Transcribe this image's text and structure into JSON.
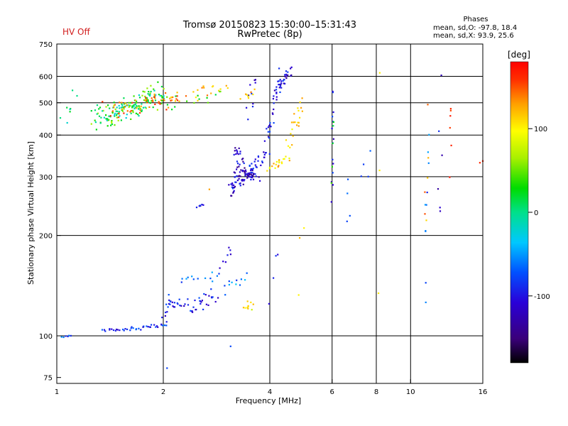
{
  "header": {
    "hv_status": "HV Off",
    "title_line1": "Tromsø 20150823 15:30:00–15:31:43",
    "title_line2": "RwPretec (8p)"
  },
  "phases_box": {
    "title": "Phases",
    "line1": "mean, sd,O: -97.8, 18.4",
    "line2": "mean, sd,X:  93.9, 25.6"
  },
  "colors": {
    "hv_off": "#d21e1e",
    "colormap": [
      "#000000",
      "#3a007a",
      "#2a00d8",
      "#0050ff",
      "#00c8ff",
      "#00e08a",
      "#00dc00",
      "#a8f000",
      "#ffff00",
      "#ffa000",
      "#ff3000",
      "#ff0000"
    ]
  },
  "chart_data": {
    "type": "scatter",
    "xlabel": "Frequency [MHz]",
    "ylabel": "Stationary phase Virtual Height [km]",
    "x_scale": "log",
    "y_scale": "log",
    "xlim": [
      1,
      16
    ],
    "ylim": [
      72,
      750
    ],
    "x_ticks": [
      1,
      2,
      4,
      6,
      8,
      10,
      16
    ],
    "y_ticks": [
      75,
      100,
      200,
      300,
      400,
      500,
      600,
      750
    ],
    "v_gridlines": [
      2,
      4,
      6,
      8,
      10
    ],
    "h_gridlines": [
      100,
      200,
      300,
      400,
      500,
      600
    ],
    "colorbar": {
      "label": "[deg]",
      "range": [
        -180,
        180
      ],
      "ticks": [
        100,
        0,
        -100
      ]
    },
    "series": [
      {
        "segments": [
          {
            "f0": 1.03,
            "f1": 1.1,
            "h0": 99,
            "h1": 100,
            "n": 6,
            "phase": -90,
            "jit": 0.005
          },
          {
            "f0": 1.35,
            "f1": 1.75,
            "h0": 103,
            "h1": 106,
            "n": 24,
            "phase": -95,
            "jit": 0.01
          },
          {
            "f0": 1.75,
            "f1": 2.05,
            "h0": 106,
            "h1": 108,
            "n": 16,
            "phase": -100,
            "jit": 0.01
          },
          {
            "f0": 2.0,
            "f1": 2.1,
            "h0": 108,
            "h1": 135,
            "n": 10,
            "phase": -105,
            "jit": 0.02
          },
          {
            "f0": 2.05,
            "f1": 2.45,
            "h0": 130,
            "h1": 118,
            "n": 22,
            "phase": -105,
            "jit": 0.03
          },
          {
            "f0": 2.4,
            "f1": 2.9,
            "h0": 118,
            "h1": 140,
            "n": 22,
            "phase": -100,
            "jit": 0.04
          },
          {
            "f0": 2.2,
            "f1": 2.8,
            "h0": 150,
            "h1": 150,
            "n": 12,
            "phase": -80,
            "jit": 0.04
          },
          {
            "f0": 2.9,
            "f1": 3.1,
            "h0": 155,
            "h1": 190,
            "n": 8,
            "phase": -110,
            "jit": 0.02
          },
          {
            "f0": 3.0,
            "f1": 3.5,
            "h0": 140,
            "h1": 150,
            "n": 10,
            "phase": -70,
            "jit": 0.04
          },
          {
            "f0": 3.1,
            "f1": 3.2,
            "h0": 260,
            "h1": 300,
            "n": 8,
            "phase": -130,
            "jit": 0.01
          },
          {
            "f0": 3.1,
            "f1": 3.6,
            "h0": 270,
            "h1": 320,
            "n": 45,
            "phase": -115,
            "jit": 0.03
          },
          {
            "f0": 3.2,
            "f1": 3.7,
            "h0": 330,
            "h1": 290,
            "n": 30,
            "phase": -120,
            "jit": 0.02
          },
          {
            "f0": 3.2,
            "f1": 3.35,
            "h0": 380,
            "h1": 320,
            "n": 16,
            "phase": -115,
            "jit": 0.02
          },
          {
            "f0": 3.5,
            "f1": 3.95,
            "h0": 310,
            "h1": 360,
            "n": 24,
            "phase": -110,
            "jit": 0.02
          },
          {
            "f0": 3.9,
            "f1": 4.1,
            "h0": 380,
            "h1": 470,
            "n": 14,
            "phase": -105,
            "jit": 0.015
          },
          {
            "f0": 4.1,
            "f1": 4.3,
            "h0": 470,
            "h1": 640,
            "n": 22,
            "phase": -108,
            "jit": 0.015
          },
          {
            "f0": 4.3,
            "f1": 4.55,
            "h0": 560,
            "h1": 640,
            "n": 20,
            "phase": -110,
            "jit": 0.02
          },
          {
            "f0": 3.5,
            "f1": 3.65,
            "h0": 440,
            "h1": 650,
            "n": 10,
            "phase": -112,
            "jit": 0.02
          },
          {
            "f0": 3.95,
            "f1": 4.5,
            "h0": 310,
            "h1": 350,
            "n": 20,
            "phase": 95,
            "jit": 0.02
          },
          {
            "f0": 4.5,
            "f1": 4.95,
            "h0": 350,
            "h1": 540,
            "n": 22,
            "phase": 100,
            "jit": 0.015
          },
          {
            "f0": 3.35,
            "f1": 3.6,
            "h0": 118,
            "h1": 128,
            "n": 10,
            "phase": 85,
            "jit": 0.03
          },
          {
            "f0": 3.35,
            "f1": 3.6,
            "h0": 500,
            "h1": 560,
            "n": 8,
            "phase": 110,
            "jit": 0.03
          },
          {
            "f0": 1.03,
            "f1": 1.15,
            "h0": 420,
            "h1": 560,
            "n": 8,
            "phase": -10,
            "jit": 0.03
          },
          {
            "f0": 1.3,
            "f1": 2.0,
            "h0": 420,
            "h1": 560,
            "n": 90,
            "phase": 30,
            "jit": 0.05
          },
          {
            "f0": 1.3,
            "f1": 2.0,
            "h0": 440,
            "h1": 540,
            "n": 70,
            "phase": -20,
            "jit": 0.05
          },
          {
            "f0": 1.4,
            "f1": 2.2,
            "h0": 470,
            "h1": 520,
            "n": 50,
            "phase": 130,
            "jit": 0.05
          },
          {
            "f0": 2.0,
            "f1": 3.0,
            "h0": 490,
            "h1": 560,
            "n": 24,
            "phase": 110,
            "jit": 0.04
          },
          {
            "f0": 2.0,
            "f1": 2.9,
            "h0": 480,
            "h1": 540,
            "n": 14,
            "phase": 20,
            "jit": 0.04
          },
          {
            "f0": 6.0,
            "f1": 6.05,
            "h0": 220,
            "h1": 620,
            "n": 14,
            "phase": -110,
            "jit": 0.005
          },
          {
            "f0": 6.0,
            "f1": 6.05,
            "h0": 280,
            "h1": 480,
            "n": 5,
            "phase": 20,
            "jit": 0.005
          },
          {
            "f0": 6.5,
            "f1": 7.5,
            "h0": 170,
            "h1": 450,
            "n": 8,
            "phase": -90,
            "jit": 0.04
          },
          {
            "f0": 8.1,
            "f1": 8.2,
            "h0": 108,
            "h1": 630,
            "n": 3,
            "phase": 110,
            "jit": 0.005
          },
          {
            "f0": 11.0,
            "f1": 11.2,
            "h0": 115,
            "h1": 620,
            "n": 10,
            "phase": -80,
            "jit": 0.01
          },
          {
            "f0": 11.0,
            "f1": 11.2,
            "h0": 150,
            "h1": 500,
            "n": 6,
            "phase": 120,
            "jit": 0.01
          },
          {
            "f0": 12.0,
            "f1": 12.2,
            "h0": 150,
            "h1": 640,
            "n": 6,
            "phase": -110,
            "jit": 0.01
          },
          {
            "f0": 12.9,
            "f1": 13.1,
            "h0": 290,
            "h1": 540,
            "n": 6,
            "phase": 140,
            "jit": 0.01
          },
          {
            "f0": 4.0,
            "f1": 4.2,
            "h0": 92,
            "h1": 240,
            "n": 4,
            "phase": -95,
            "jit": 0.01
          },
          {
            "f0": 3.1,
            "f1": 3.2,
            "h0": 93,
            "h1": 94,
            "n": 1,
            "phase": -95,
            "jit": 0.0
          },
          {
            "f0": 2.05,
            "f1": 2.1,
            "h0": 80,
            "h1": 80,
            "n": 1,
            "phase": -95,
            "jit": 0.0
          },
          {
            "f0": 2.5,
            "f1": 2.6,
            "h0": 240,
            "h1": 250,
            "n": 6,
            "phase": -110,
            "jit": 0.01
          },
          {
            "f0": 2.7,
            "f1": 2.75,
            "h0": 275,
            "h1": 275,
            "n": 1,
            "phase": 100,
            "jit": 0.0
          },
          {
            "f0": 4.8,
            "f1": 5.0,
            "h0": 110,
            "h1": 265,
            "n": 3,
            "phase": 110,
            "jit": 0.01
          },
          {
            "f0": 15.7,
            "f1": 16.0,
            "h0": 330,
            "h1": 335,
            "n": 2,
            "phase": 130,
            "jit": 0.0
          }
        ]
      }
    ]
  }
}
